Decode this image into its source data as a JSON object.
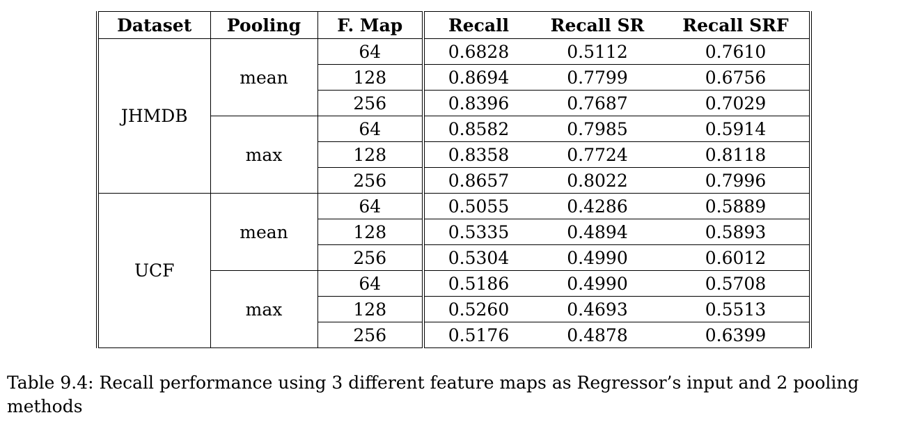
{
  "table": {
    "headers": [
      "Dataset",
      "Pooling",
      "F. Map",
      "Recall",
      "Recall SR",
      "Recall SRF"
    ],
    "groups": [
      {
        "dataset": "JHMDB",
        "poolings": [
          {
            "pooling": "mean",
            "rows": [
              {
                "fmap": "64",
                "recall": "0.6828",
                "recall_sr": "0.5112",
                "recall_srf": "0.7610"
              },
              {
                "fmap": "128",
                "recall": "0.8694",
                "recall_sr": "0.7799",
                "recall_srf": "0.6756"
              },
              {
                "fmap": "256",
                "recall": "0.8396",
                "recall_sr": "0.7687",
                "recall_srf": "0.7029"
              }
            ]
          },
          {
            "pooling": "max",
            "rows": [
              {
                "fmap": "64",
                "recall": "0.8582",
                "recall_sr": "0.7985",
                "recall_srf": "0.5914"
              },
              {
                "fmap": "128",
                "recall": "0.8358",
                "recall_sr": "0.7724",
                "recall_srf": "0.8118"
              },
              {
                "fmap": "256",
                "recall": "0.8657",
                "recall_sr": "0.8022",
                "recall_srf": "0.7996"
              }
            ]
          }
        ]
      },
      {
        "dataset": "UCF",
        "poolings": [
          {
            "pooling": "mean",
            "rows": [
              {
                "fmap": "64",
                "recall": "0.5055",
                "recall_sr": "0.4286",
                "recall_srf": "0.5889"
              },
              {
                "fmap": "128",
                "recall": "0.5335",
                "recall_sr": "0.4894",
                "recall_srf": "0.5893"
              },
              {
                "fmap": "256",
                "recall": "0.5304",
                "recall_sr": "0.4990",
                "recall_srf": "0.6012"
              }
            ]
          },
          {
            "pooling": "max",
            "rows": [
              {
                "fmap": "64",
                "recall": "0.5186",
                "recall_sr": "0.4990",
                "recall_srf": "0.5708"
              },
              {
                "fmap": "128",
                "recall": "0.5260",
                "recall_sr": "0.4693",
                "recall_srf": "0.5513"
              },
              {
                "fmap": "256",
                "recall": "0.5176",
                "recall_sr": "0.4878",
                "recall_srf": "0.6399"
              }
            ]
          }
        ]
      }
    ]
  },
  "caption": "Table 9.4: Recall performance using 3 different feature maps as Regressor’s input and 2 pooling methods"
}
